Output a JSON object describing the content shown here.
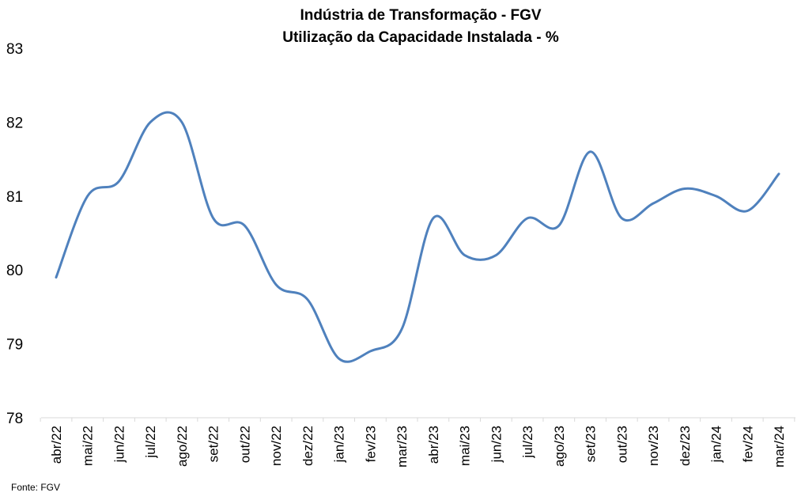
{
  "chart_data": {
    "type": "line",
    "title": "Indústria de Transformação - FGV",
    "subtitle": "Utilização da Capacidade Instalada - %",
    "xlabel": "",
    "ylabel": "",
    "ylim": [
      78,
      83
    ],
    "yticks": [
      "78",
      "79",
      "80",
      "81",
      "82",
      "83"
    ],
    "categories": [
      "abr/22",
      "mai/22",
      "jun/22",
      "jul/22",
      "ago/22",
      "set/22",
      "out/22",
      "nov/22",
      "dez/22",
      "jan/23",
      "fev/23",
      "mar/23",
      "abr/23",
      "mai/23",
      "jun/23",
      "jul/23",
      "ago/23",
      "set/23",
      "out/23",
      "nov/23",
      "dez/23",
      "jan/24",
      "fev/24",
      "mar/24"
    ],
    "series": [
      {
        "values": [
          79.9,
          81.0,
          81.2,
          82.0,
          82.0,
          80.7,
          80.6,
          79.8,
          79.6,
          78.8,
          78.9,
          79.2,
          80.7,
          80.2,
          80.2,
          80.7,
          80.6,
          81.6,
          80.7,
          80.9,
          81.1,
          81.0,
          80.8,
          81.3
        ]
      }
    ],
    "grid": false,
    "legend": "none",
    "line_color": "#4F81BD",
    "source": "Fonte: FGV"
  }
}
